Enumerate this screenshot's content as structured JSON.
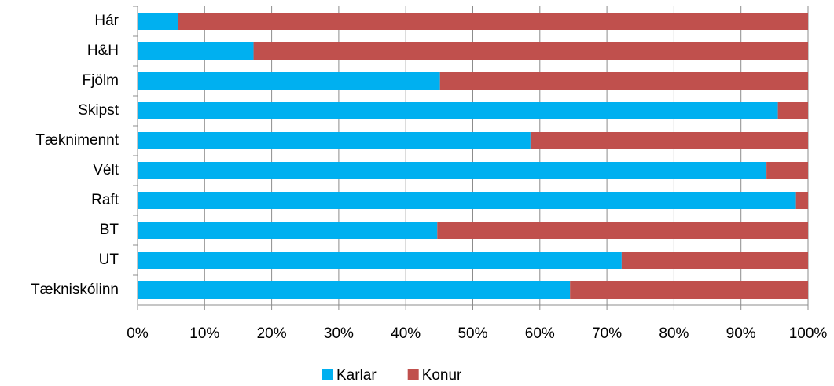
{
  "chart_data": {
    "type": "bar",
    "orientation": "horizontal",
    "stacked": true,
    "categories": [
      "Hár",
      "H&H",
      "Fjölm",
      "Skipst",
      "Tæknimennt",
      "Vélt",
      "Raft",
      "BT",
      "UT",
      "Tækniskólinn"
    ],
    "series": [
      {
        "name": "Karlar",
        "color": "#00b0f0",
        "values": [
          6,
          17.3,
          45.1,
          95.5,
          58.6,
          93.8,
          98.2,
          44.7,
          72.2,
          64.5
        ]
      },
      {
        "name": "Konur",
        "color": "#c0504d",
        "values": [
          94,
          82.7,
          54.9,
          4.5,
          41.4,
          6.2,
          1.8,
          55.3,
          27.8,
          35.5
        ]
      }
    ],
    "xlim": [
      0,
      100
    ],
    "xticks": [
      {
        "value": 0,
        "label": "0%"
      },
      {
        "value": 10,
        "label": "10%"
      },
      {
        "value": 20,
        "label": "20%"
      },
      {
        "value": 30,
        "label": "30%"
      },
      {
        "value": 40,
        "label": "40%"
      },
      {
        "value": 50,
        "label": "50%"
      },
      {
        "value": 60,
        "label": "60%"
      },
      {
        "value": 70,
        "label": "70%"
      },
      {
        "value": 80,
        "label": "80%"
      },
      {
        "value": 90,
        "label": "90%"
      },
      {
        "value": 100,
        "label": "100%"
      }
    ],
    "grid": true,
    "legend": "bottom"
  }
}
